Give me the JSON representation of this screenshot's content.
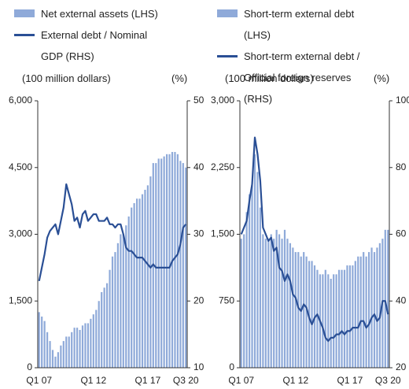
{
  "chart_data": [
    {
      "type": "combo",
      "categories": [
        "Q1 07",
        null,
        null,
        null,
        null,
        null,
        null,
        null,
        null,
        null,
        null,
        null,
        null,
        null,
        null,
        null,
        null,
        null,
        null,
        null,
        "Q1 12",
        null,
        null,
        null,
        null,
        null,
        null,
        null,
        null,
        null,
        null,
        null,
        null,
        null,
        null,
        null,
        null,
        null,
        null,
        null,
        "Q1 17",
        null,
        null,
        null,
        null,
        null,
        null,
        null,
        null,
        null,
        null,
        null,
        null,
        null,
        "Q3 20"
      ],
      "y_label": "(100 million dollars)",
      "y2_label": "(%)",
      "ylim": [
        0,
        6000
      ],
      "yticks": [
        0,
        {
          "value": 1500,
          "label": "1,500"
        },
        {
          "value": 3000,
          "label": "3,000"
        },
        {
          "value": 4500,
          "label": "4,500"
        },
        {
          "value": 6000,
          "label": "6,000"
        }
      ],
      "y2lim": [
        10,
        50
      ],
      "y2ticks": [
        10,
        20,
        30,
        40,
        50
      ],
      "series": [
        {
          "name": "Net external assets (LHS)",
          "type": "bar",
          "color": "#8faad9",
          "values": [
            1250,
            1150,
            1050,
            800,
            600,
            400,
            250,
            350,
            500,
            600,
            700,
            700,
            800,
            900,
            900,
            850,
            950,
            1000,
            1000,
            1100,
            1200,
            1300,
            1500,
            1700,
            1800,
            1900,
            2200,
            2500,
            2600,
            2800,
            3000,
            3000,
            3200,
            3400,
            3600,
            3700,
            3800,
            3800,
            3900,
            4000,
            4100,
            4300,
            4600,
            4600,
            4700,
            4700,
            4750,
            4800,
            4800,
            4850,
            4850,
            4800,
            4650,
            4600,
            4500
          ]
        },
        {
          "name": "External debt / Nominal GDP (RHS)",
          "type": "line",
          "axis": "y2",
          "color": "#2a4f95",
          "values": [
            23,
            25,
            27,
            29.5,
            30.5,
            31,
            31.5,
            30,
            32,
            34,
            37.5,
            36,
            34.5,
            32,
            32.5,
            31,
            33,
            33.5,
            32,
            32.5,
            33,
            33,
            32,
            32,
            32,
            32.5,
            31.5,
            31.5,
            31,
            31.5,
            31.5,
            30,
            28,
            27.5,
            27.5,
            27,
            26.5,
            26.5,
            26.5,
            26,
            25.5,
            25,
            25.5,
            25,
            25,
            25,
            25,
            25,
            25,
            26,
            26.5,
            27,
            28.5,
            31,
            31.5
          ]
        }
      ]
    },
    {
      "type": "combo",
      "categories": [
        "Q1 07",
        null,
        null,
        null,
        null,
        null,
        null,
        null,
        null,
        null,
        null,
        null,
        null,
        null,
        null,
        null,
        null,
        null,
        null,
        null,
        "Q1 12",
        null,
        null,
        null,
        null,
        null,
        null,
        null,
        null,
        null,
        null,
        null,
        null,
        null,
        null,
        null,
        null,
        null,
        null,
        null,
        "Q1 17",
        null,
        null,
        null,
        null,
        null,
        null,
        null,
        null,
        null,
        null,
        null,
        null,
        null,
        "Q3 20"
      ],
      "y_label": "(100 million dollars)",
      "y2_label": "(%)",
      "ylim": [
        0,
        3000
      ],
      "yticks": [
        0,
        750,
        {
          "value": 1500,
          "label": "1,500"
        },
        {
          "value": 2250,
          "label": "2,250"
        },
        {
          "value": 3000,
          "label": "3,000"
        }
      ],
      "y2lim": [
        20,
        100
      ],
      "y2ticks": [
        20,
        40,
        60,
        80,
        100
      ],
      "series": [
        {
          "name": "Short-term external debt (LHS)",
          "type": "bar",
          "color": "#8faad9",
          "values": [
            1450,
            1500,
            1750,
            1950,
            2050,
            2400,
            2200,
            1800,
            1500,
            1450,
            1450,
            1500,
            1450,
            1550,
            1500,
            1450,
            1550,
            1450,
            1400,
            1350,
            1300,
            1300,
            1250,
            1300,
            1250,
            1200,
            1200,
            1150,
            1100,
            1050,
            1050,
            1100,
            1050,
            1000,
            1050,
            1050,
            1100,
            1100,
            1100,
            1150,
            1150,
            1150,
            1200,
            1250,
            1250,
            1300,
            1250,
            1300,
            1350,
            1300,
            1350,
            1400,
            1450,
            1550,
            1550
          ]
        },
        {
          "name": "Short-term external debt / Official foreign reserves (RHS)",
          "type": "line",
          "axis": "y2",
          "color": "#2a4f95",
          "values": [
            60,
            62,
            64,
            70,
            75,
            89,
            84,
            76,
            62,
            60,
            58,
            59,
            55,
            56,
            50,
            49,
            46,
            48,
            46,
            42,
            41,
            38,
            37,
            39,
            38,
            35,
            33,
            35,
            36,
            34,
            32,
            29,
            28,
            29,
            29,
            30,
            30,
            31,
            30,
            31,
            31,
            32,
            32,
            32,
            34,
            34,
            32,
            33,
            35,
            36,
            34,
            35,
            40,
            40,
            36
          ]
        }
      ]
    }
  ]
}
